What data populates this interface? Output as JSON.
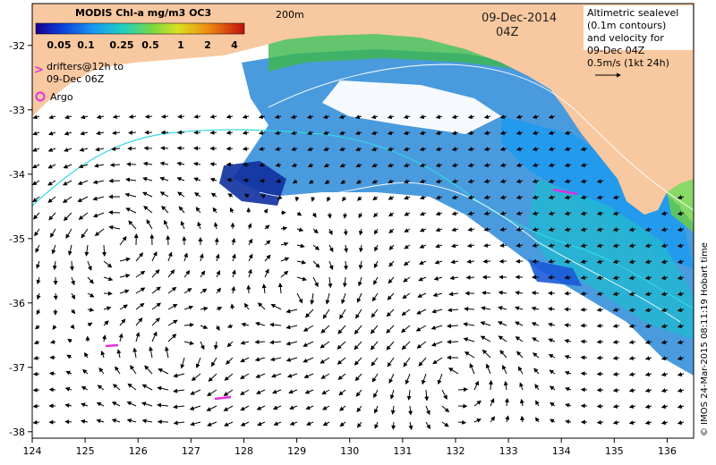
{
  "legend": {
    "title": "MODIS Chl-a mg/m3 OC3",
    "ticks": [
      "0.05",
      "0.1",
      "0.25",
      "0.5",
      "1",
      "2",
      "4"
    ],
    "drifters_line1": "drifters@12h to",
    "drifters_line2": "09-Dec 06Z",
    "argo": "Argo"
  },
  "labels": {
    "isobath": "200m",
    "date": "09-Dec-2014",
    "time": "04Z",
    "credit": "© IMOS 24-Mar-2015 08:11:19 Hobart time"
  },
  "note": {
    "line1": "Altimetric sealevel",
    "line2": "(0.1m contours)",
    "line3": "and velocity for",
    "line4": "09-Dec 04Z",
    "line5": "0.5m/s (1kt 24h)"
  },
  "axes": {
    "x_ticks": [
      "124",
      "125",
      "126",
      "127",
      "128",
      "129",
      "130",
      "131",
      "132",
      "133",
      "134",
      "135",
      "136"
    ],
    "y_ticks": [
      "-32",
      "-33",
      "-34",
      "-35",
      "-36",
      "-37",
      "-38"
    ]
  },
  "colors": {
    "land": "#f8c8a0",
    "ssh_contour": "#30d8e0",
    "drifter": "#e030e0"
  }
}
